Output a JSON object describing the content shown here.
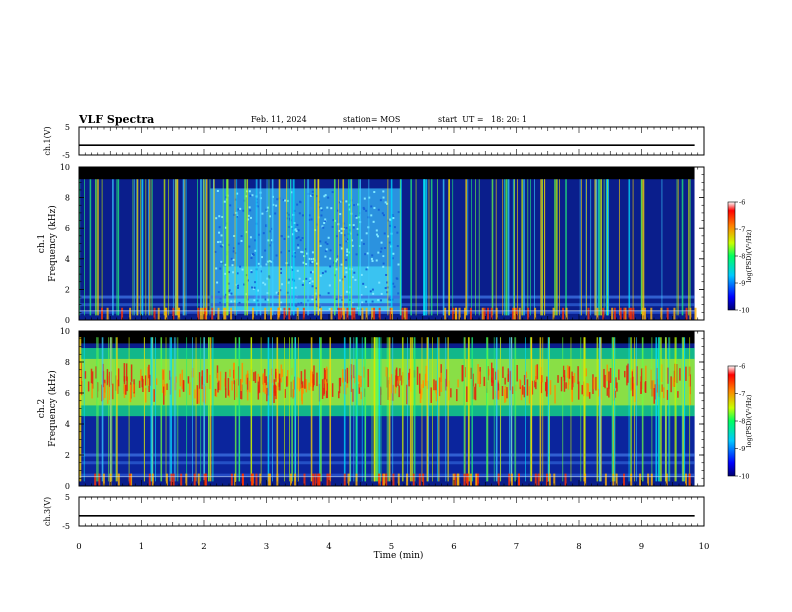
{
  "header": {
    "title": "VLF Spectra",
    "date": "Feb. 11, 2024",
    "station": "station= MOS",
    "start": "start  UT =   18: 20: 1"
  },
  "chart_data": [
    {
      "type": "line",
      "panel": "ch1-waveform",
      "ylabel": "ch.1(V)",
      "yticks": [
        "5",
        "-5"
      ],
      "ylim": [
        -5,
        5
      ],
      "xlim": [
        0,
        10
      ],
      "trace_level": -1.5,
      "trace_end": 9.85
    },
    {
      "type": "heatmap",
      "panel": "ch1-spectrogram",
      "ylabel_line1": "ch.1",
      "ylabel_line2": "Frequency (kHz)",
      "yticks": [
        "0",
        "2",
        "4",
        "6",
        "8",
        "10"
      ],
      "ylim": [
        0,
        10
      ],
      "xlim": [
        0,
        10
      ],
      "data_end": 9.85,
      "colorbar": {
        "label": "log(PSD)(V²/Hz)",
        "ticks": [
          "-6",
          "-7",
          "-8",
          "-9",
          "-10"
        ],
        "range": [
          -10,
          -6
        ]
      }
    },
    {
      "type": "heatmap",
      "panel": "ch2-spectrogram",
      "ylabel_line1": "ch.2",
      "ylabel_line2": "Frequency (kHz)",
      "yticks": [
        "0",
        "2",
        "4",
        "6",
        "8",
        "10"
      ],
      "ylim": [
        0,
        10
      ],
      "xlim": [
        0,
        10
      ],
      "data_end": 9.85,
      "colorbar": {
        "label": "log(PSD)(V²/Hz)",
        "ticks": [
          "-6",
          "-7",
          "-8",
          "-9",
          "-10"
        ],
        "range": [
          -10,
          -6
        ]
      }
    },
    {
      "type": "line",
      "panel": "ch3-waveform",
      "ylabel": "ch.3(V)",
      "yticks": [
        "5",
        "-5"
      ],
      "ylim": [
        -5,
        5
      ],
      "xlim": [
        0,
        10
      ],
      "trace_level": -1.5,
      "trace_end": 9.85,
      "xlabel": "Time (min)",
      "xticks": [
        "0",
        "1",
        "2",
        "3",
        "4",
        "5",
        "6",
        "7",
        "8",
        "9",
        "10"
      ]
    }
  ]
}
